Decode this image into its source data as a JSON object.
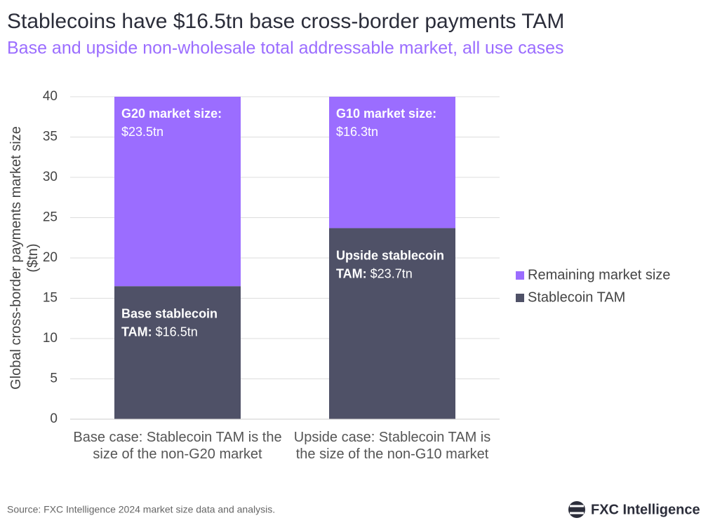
{
  "chart_data": {
    "type": "stacked-bar",
    "title": "Stablecoins have $16.5tn base cross-border payments TAM",
    "subtitle": "Base and upside non-wholesale total addressable market, all use cases",
    "y_label": "Global cross-border payments market size ($tn)",
    "categories": [
      "Base case: Stablecoin TAM is the size of the non-G20 market",
      "Upside case: Stablecoin TAM is the size of the non-G10 market"
    ],
    "series": [
      {
        "name": "Stablecoin TAM",
        "color": "#4f5167",
        "values": [
          16.5,
          23.7
        ],
        "value_labels": [
          "$16.5tn",
          "$23.7tn"
        ],
        "value_label_titles": [
          [
            "Base stablecoin",
            "TAM:"
          ],
          [
            "Upside stablecoin",
            "TAM:"
          ]
        ]
      },
      {
        "name": "Remaining market size",
        "color": "#9b6dff",
        "values": [
          23.5,
          16.3
        ],
        "value_labels": [
          "$23.5tn",
          "$16.3tn"
        ],
        "value_label_titles": [
          [
            "G20 market size:"
          ],
          [
            "G10 market size:"
          ]
        ]
      }
    ],
    "ylim": [
      0,
      40
    ],
    "yticks": [
      0,
      5,
      10,
      15,
      20,
      25,
      30,
      35,
      40
    ],
    "grid": true,
    "legend": "right",
    "source": "Source: FXC Intelligence 2024 market size data and analysis.",
    "brand": "FXC Intelligence"
  }
}
